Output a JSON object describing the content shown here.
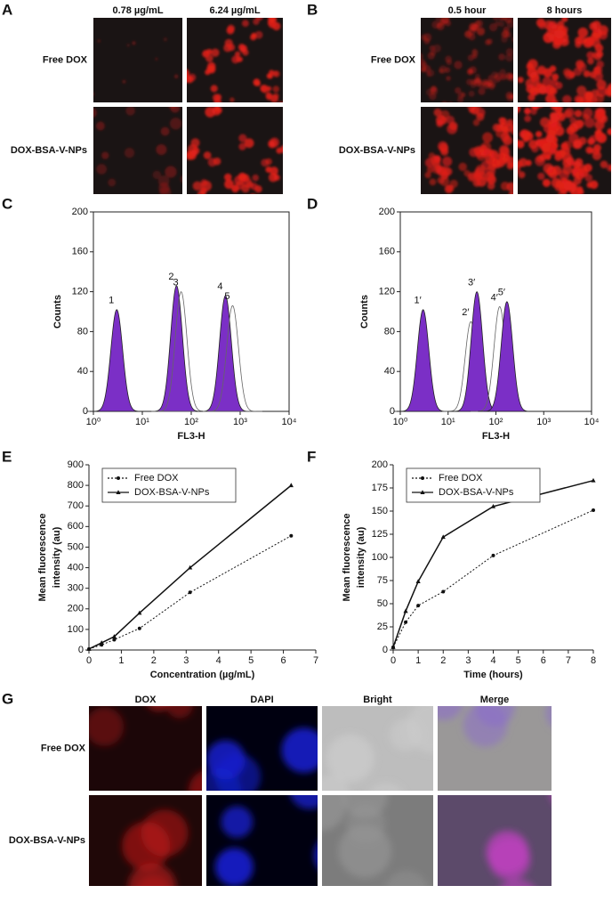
{
  "panel_a": {
    "label": "A",
    "columns": [
      "0.78 µg/mL",
      "6.24 µg/mL"
    ],
    "rows": [
      "Free DOX",
      "DOX-BSA-V-NPs"
    ]
  },
  "panel_b": {
    "label": "B",
    "columns": [
      "0.5 hour",
      "8 hours"
    ],
    "rows": [
      "Free DOX",
      "DOX-BSA-V-NPs"
    ]
  },
  "panel_g": {
    "label": "G",
    "columns": [
      "DOX",
      "DAPI",
      "Bright",
      "Merge"
    ],
    "rows": [
      "Free DOX",
      "DOX-BSA-V-NPs"
    ]
  },
  "chart_data": [
    {
      "panel": "C",
      "type": "density",
      "xlabel": "FL3-H",
      "ylabel": "Counts",
      "xscale": "log",
      "frame": true,
      "xlim": [
        1,
        10000
      ],
      "xticks": [
        {
          "value": 1,
          "label": "10⁰"
        },
        {
          "value": 10,
          "label": "10¹"
        },
        {
          "value": 100,
          "label": "10²"
        },
        {
          "value": 1000,
          "label": "10³"
        },
        {
          "value": 10000,
          "label": "10⁴"
        }
      ],
      "ylim": [
        0,
        200
      ],
      "yticks": [
        0,
        40,
        80,
        120,
        160,
        200
      ],
      "peaks": [
        {
          "label": "1",
          "x": 3,
          "y": 102,
          "fill": "#7b2fc6"
        },
        {
          "label": "2",
          "x": 50,
          "y": 126,
          "fill": "#7b2fc6"
        },
        {
          "label": "3",
          "x": 62,
          "y": 120,
          "fill": "none"
        },
        {
          "label": "4",
          "x": 500,
          "y": 116,
          "fill": "#7b2fc6"
        },
        {
          "label": "5",
          "x": 700,
          "y": 106,
          "fill": "none"
        }
      ]
    },
    {
      "panel": "D",
      "type": "density",
      "xlabel": "FL3-H",
      "ylabel": "Counts",
      "xscale": "log",
      "frame": true,
      "xlim": [
        1,
        10000
      ],
      "xticks": [
        {
          "value": 1,
          "label": "10⁰"
        },
        {
          "value": 10,
          "label": "10¹"
        },
        {
          "value": 100,
          "label": "10²"
        },
        {
          "value": 1000,
          "label": "10³"
        },
        {
          "value": 10000,
          "label": "10⁴"
        }
      ],
      "ylim": [
        0,
        200
      ],
      "yticks": [
        0,
        40,
        80,
        120,
        160,
        200
      ],
      "peaks": [
        {
          "label": "1′",
          "x": 3,
          "y": 102,
          "fill": "#7b2fc6"
        },
        {
          "label": "2′",
          "x": 30,
          "y": 90,
          "fill": "none"
        },
        {
          "label": "3′",
          "x": 40,
          "y": 120,
          "fill": "#7b2fc6"
        },
        {
          "label": "4′",
          "x": 120,
          "y": 105,
          "fill": "none"
        },
        {
          "label": "5′",
          "x": 170,
          "y": 110,
          "fill": "#7b2fc6"
        }
      ]
    },
    {
      "panel": "E",
      "type": "line",
      "xlabel": "Concentration (µg/mL)",
      "ylabel": [
        "Mean fluorescence",
        "intensity (au)"
      ],
      "frame": false,
      "legend": "upper left",
      "xlim": [
        0,
        7
      ],
      "xticks": [
        0,
        1,
        2,
        3,
        4,
        5,
        6,
        7
      ],
      "ylim": [
        0,
        900
      ],
      "yticks": [
        0,
        100,
        200,
        300,
        400,
        500,
        600,
        700,
        800,
        900
      ],
      "x": [
        0,
        0.39,
        0.78,
        1.56,
        3.12,
        6.24
      ],
      "series": [
        {
          "name": "Free DOX",
          "color": "#111111",
          "line_style": "dotted",
          "marker": "circle",
          "values": [
            5,
            25,
            50,
            105,
            280,
            555
          ]
        },
        {
          "name": "DOX-BSA-V-NPs",
          "color": "#111111",
          "line_style": "solid",
          "marker": "triangle",
          "values": [
            5,
            35,
            65,
            180,
            400,
            800
          ]
        }
      ]
    },
    {
      "panel": "F",
      "type": "line",
      "xlabel": "Time (hours)",
      "ylabel": [
        "Mean fluorescence",
        "intensity (au)"
      ],
      "frame": false,
      "legend": "upper left",
      "xlim": [
        0,
        8
      ],
      "xticks": [
        0,
        1,
        2,
        3,
        4,
        5,
        6,
        7,
        8
      ],
      "ylim": [
        0,
        200
      ],
      "yticks": [
        0,
        25,
        50,
        75,
        100,
        125,
        150,
        175,
        200
      ],
      "x": [
        0,
        0.5,
        1,
        2,
        4,
        8
      ],
      "series": [
        {
          "name": "Free DOX",
          "color": "#111111",
          "line_style": "dotted",
          "marker": "circle",
          "values": [
            3,
            30,
            48,
            63,
            102,
            151
          ]
        },
        {
          "name": "DOX-BSA-V-NPs",
          "color": "#111111",
          "line_style": "solid",
          "marker": "triangle",
          "values": [
            3,
            42,
            74,
            122,
            155,
            183
          ]
        }
      ]
    }
  ]
}
